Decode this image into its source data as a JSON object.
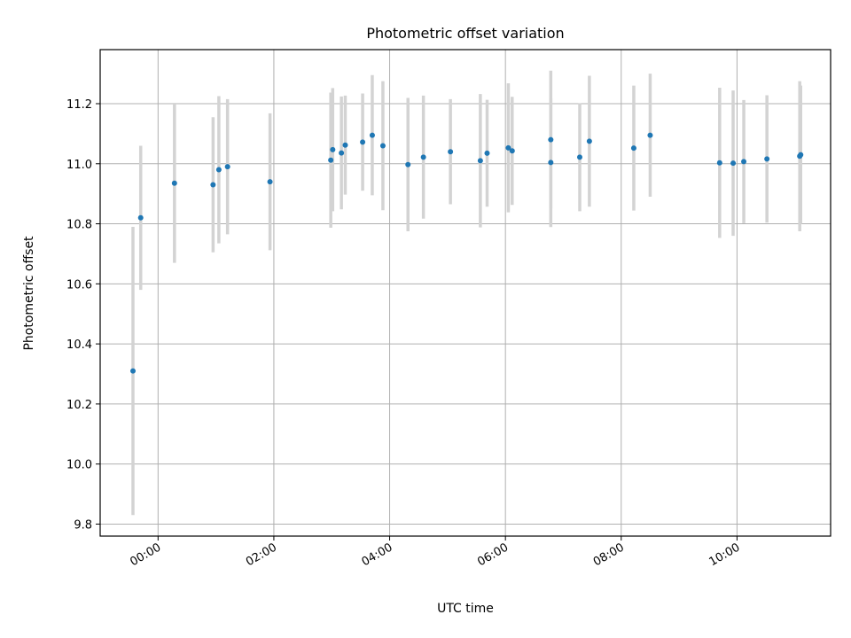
{
  "chart_data": {
    "type": "scatter",
    "title": "Photometric offset variation",
    "xlabel": "UTC time",
    "ylabel": "Photometric offset",
    "x_unit": "UTC time (HH:MM)",
    "xlim": [
      "-01:00",
      "11:37"
    ],
    "ylim": [
      9.76,
      11.38
    ],
    "x_ticks": [
      "00:00",
      "02:00",
      "04:00",
      "06:00",
      "08:00",
      "10:00"
    ],
    "y_ticks": [
      9.8,
      10.0,
      10.2,
      10.4,
      10.6,
      10.8,
      11.0,
      11.2
    ],
    "y_tick_labels": [
      "9.8",
      "10.0",
      "10.2",
      "10.4",
      "10.6",
      "10.8",
      "11.0",
      "11.2"
    ],
    "grid": true,
    "legend": "none",
    "series": [
      {
        "marker_color": "#1f77b4",
        "errorbar_color": "#d3d3d3",
        "points": [
          {
            "t": "-00:26",
            "y": 10.31,
            "err": 0.48
          },
          {
            "t": "-00:18",
            "y": 10.82,
            "err": 0.24
          },
          {
            "t": "00:17",
            "y": 10.935,
            "err": 0.265
          },
          {
            "t": "00:57",
            "y": 10.93,
            "err": 0.225
          },
          {
            "t": "01:03",
            "y": 10.98,
            "err": 0.245
          },
          {
            "t": "01:12",
            "y": 10.99,
            "err": 0.225
          },
          {
            "t": "01:56",
            "y": 10.94,
            "err": 0.228
          },
          {
            "t": "02:59",
            "y": 11.012,
            "err": 0.225
          },
          {
            "t": "03:01",
            "y": 11.047,
            "err": 0.205
          },
          {
            "t": "03:10",
            "y": 11.036,
            "err": 0.188
          },
          {
            "t": "03:14",
            "y": 11.062,
            "err": 0.165
          },
          {
            "t": "03:32",
            "y": 11.072,
            "err": 0.162
          },
          {
            "t": "03:42",
            "y": 11.095,
            "err": 0.2
          },
          {
            "t": "03:53",
            "y": 11.06,
            "err": 0.215
          },
          {
            "t": "04:19",
            "y": 10.997,
            "err": 0.222
          },
          {
            "t": "04:35",
            "y": 11.022,
            "err": 0.205
          },
          {
            "t": "05:03",
            "y": 11.04,
            "err": 0.175
          },
          {
            "t": "05:34",
            "y": 11.01,
            "err": 0.222
          },
          {
            "t": "05:41",
            "y": 11.035,
            "err": 0.178
          },
          {
            "t": "06:03",
            "y": 11.053,
            "err": 0.215
          },
          {
            "t": "06:07",
            "y": 11.043,
            "err": 0.18
          },
          {
            "t": "06:47",
            "y": 11.08,
            "err": 0.23
          },
          {
            "t": "06:47",
            "y": 11.004,
            "err": 0.215
          },
          {
            "t": "07:17",
            "y": 11.022,
            "err": 0.18
          },
          {
            "t": "07:27",
            "y": 11.075,
            "err": 0.218
          },
          {
            "t": "08:13",
            "y": 11.052,
            "err": 0.208
          },
          {
            "t": "08:30",
            "y": 11.095,
            "err": 0.205
          },
          {
            "t": "09:42",
            "y": 11.003,
            "err": 0.25
          },
          {
            "t": "09:56",
            "y": 11.002,
            "err": 0.242
          },
          {
            "t": "10:07",
            "y": 11.007,
            "err": 0.205
          },
          {
            "t": "10:31",
            "y": 11.016,
            "err": 0.212
          },
          {
            "t": "11:05",
            "y": 11.025,
            "err": 0.25
          },
          {
            "t": "11:06",
            "y": 11.03,
            "err": 0.23
          }
        ]
      }
    ]
  }
}
